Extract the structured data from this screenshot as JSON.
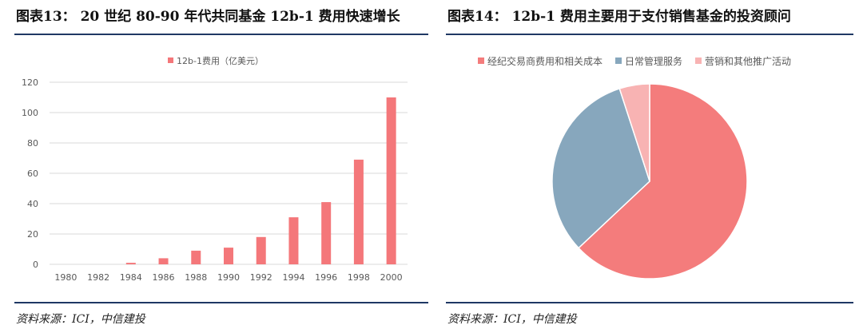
{
  "left": {
    "title": "图表13： 20 世纪 80-90 年代共同基金 12b-1 费用快速增长",
    "source": "资料来源：ICI，中信建投"
  },
  "right": {
    "title": "图表14： 12b-1 费用主要用于支付销售基金的投资顾问",
    "source": "资料来源：ICI，中信建投"
  },
  "chart_data": [
    {
      "type": "bar",
      "legend_position": "top",
      "series": [
        {
          "name": "12b-1费用（亿美元）",
          "color": "#f4777a",
          "values": [
            0,
            0,
            1,
            4,
            9,
            11,
            18,
            31,
            41,
            69,
            110
          ]
        }
      ],
      "categories": [
        "1980",
        "1982",
        "1984",
        "1986",
        "1988",
        "1990",
        "1992",
        "1994",
        "1996",
        "1998",
        "2000"
      ],
      "ylim": [
        0,
        120
      ],
      "yticks": [
        0,
        20,
        40,
        60,
        80,
        100,
        120
      ],
      "grid": true
    },
    {
      "type": "pie",
      "legend_position": "top",
      "slices": [
        {
          "label": "经纪交易商费用和相关成本",
          "value": 63,
          "color": "#f47c7c"
        },
        {
          "label": "日常管理服务",
          "value": 32,
          "color": "#87a7bd"
        },
        {
          "label": "营销和其他推广活动",
          "value": 5,
          "color": "#f8b3b3"
        }
      ]
    }
  ]
}
